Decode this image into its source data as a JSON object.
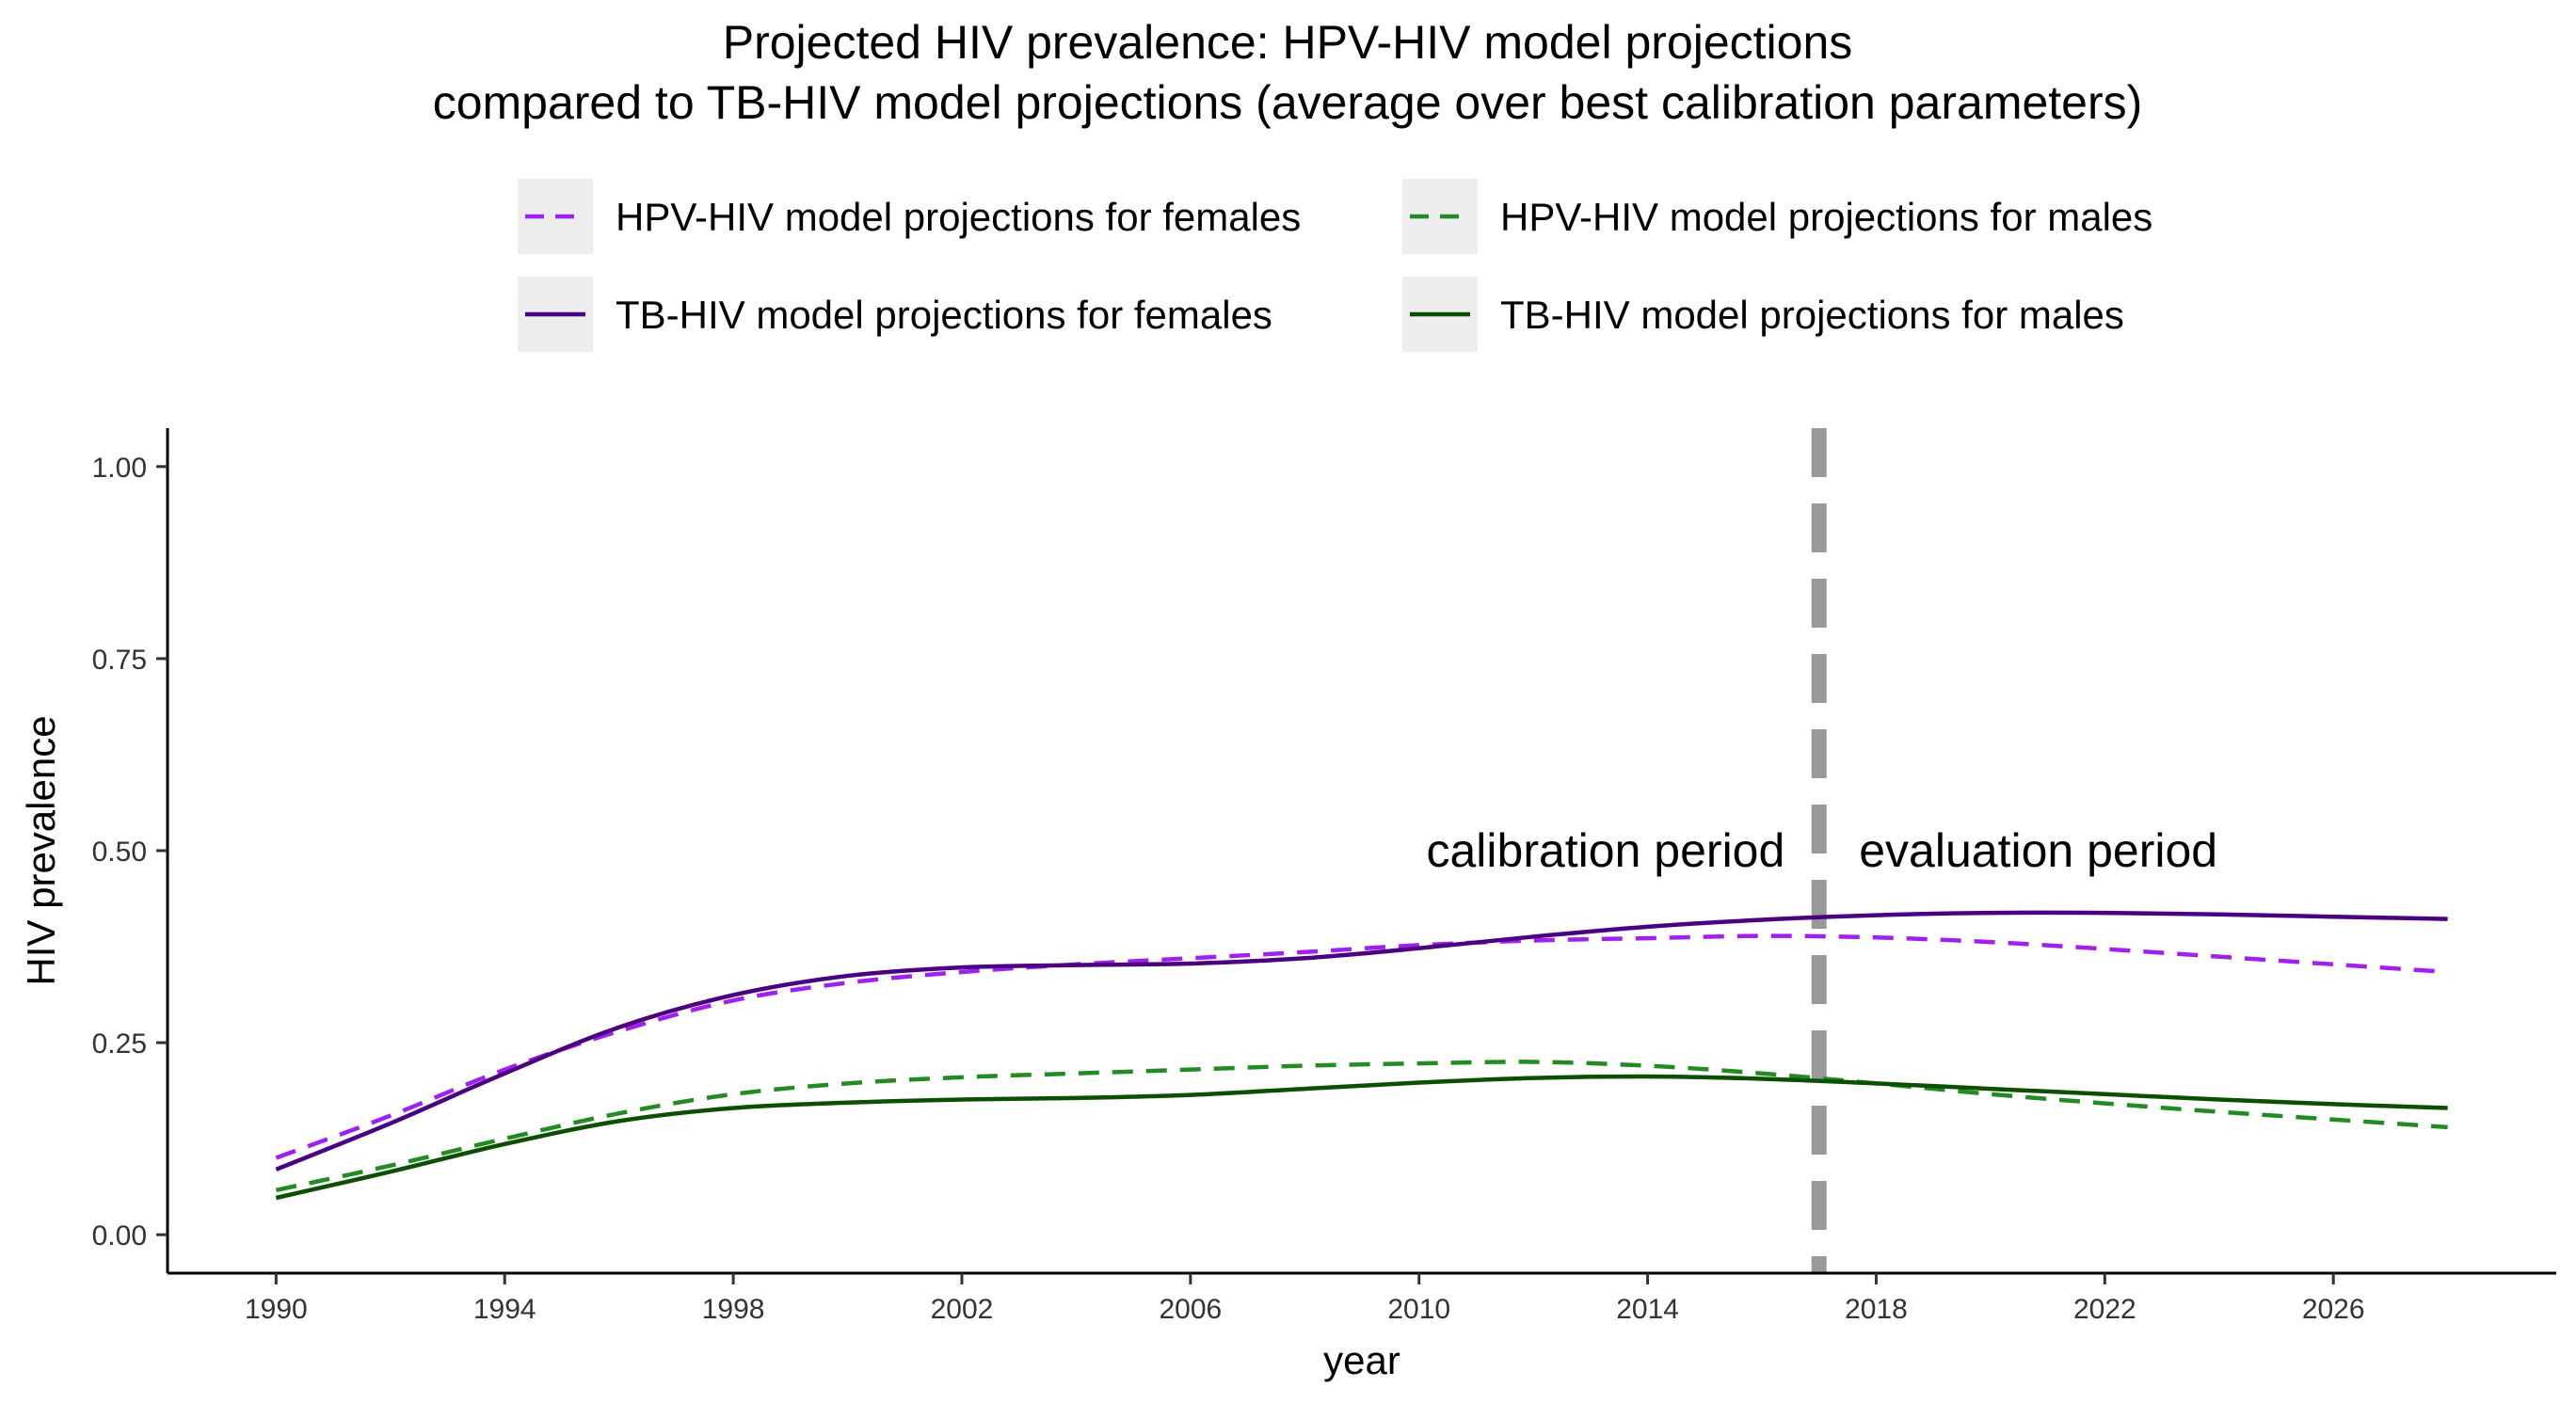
{
  "chart_data": {
    "type": "line",
    "title": "Projected HIV prevalence: HPV-HIV model projections",
    "subtitle": "compared to TB-HIV model projections (average over best calibration parameters)",
    "xlabel": "year",
    "ylabel": "HIV prevalence",
    "xlim": [
      1988.1,
      2029.9
    ],
    "ylim": [
      -0.05,
      1.05
    ],
    "x_ticks": [
      1990,
      1994,
      1998,
      2002,
      2006,
      2010,
      2014,
      2018,
      2022,
      2026
    ],
    "x_tick_labels": [
      "1990",
      "1994",
      "1998",
      "2002",
      "2006",
      "2010",
      "2014",
      "2018",
      "2022",
      "2026"
    ],
    "y_ticks": [
      0,
      0.25,
      0.5,
      0.75,
      1.0
    ],
    "y_tick_labels": [
      "0.00",
      "0.25",
      "0.50",
      "0.75",
      "1.00"
    ],
    "grid": false,
    "legend_position": "top",
    "x": [
      1990,
      1992,
      1994,
      1996,
      1998,
      2000,
      2002,
      2004,
      2006,
      2008,
      2010,
      2012,
      2014,
      2016,
      2018,
      2020,
      2022,
      2024,
      2026,
      2028
    ],
    "series": [
      {
        "name": "HPV-HIV model projections for females",
        "style": "dashed",
        "color": "#A020F0",
        "values": [
          0.1,
          0.155,
          0.215,
          0.265,
          0.305,
          0.328,
          0.342,
          0.352,
          0.36,
          0.368,
          0.377,
          0.383,
          0.386,
          0.389,
          0.387,
          0.381,
          0.372,
          0.362,
          0.352,
          0.342
        ]
      },
      {
        "name": "HPV-HIV model projections for males",
        "style": "dashed",
        "color": "#228B22",
        "values": [
          0.058,
          0.09,
          0.125,
          0.158,
          0.183,
          0.197,
          0.205,
          0.21,
          0.215,
          0.22,
          0.223,
          0.225,
          0.22,
          0.21,
          0.197,
          0.183,
          0.171,
          0.16,
          0.15,
          0.14
        ]
      },
      {
        "name": "TB-HIV model projections for females",
        "style": "solid",
        "color": "#4B0082",
        "values": [
          0.085,
          0.145,
          0.21,
          0.27,
          0.312,
          0.337,
          0.348,
          0.351,
          0.353,
          0.36,
          0.373,
          0.388,
          0.401,
          0.41,
          0.416,
          0.419,
          0.419,
          0.417,
          0.414,
          0.411
        ]
      },
      {
        "name": "TB-HIV model projections for males",
        "style": "solid",
        "color": "#0B5000",
        "values": [
          0.048,
          0.082,
          0.118,
          0.148,
          0.165,
          0.172,
          0.176,
          0.178,
          0.182,
          0.19,
          0.198,
          0.204,
          0.206,
          0.203,
          0.197,
          0.19,
          0.183,
          0.176,
          0.17,
          0.165
        ]
      }
    ],
    "vline": {
      "x": 2017,
      "style": "dashed",
      "color": "#999999"
    },
    "annotations": [
      {
        "text": "calibration period",
        "x": 2016.4,
        "y": 0.5,
        "anchor": "end"
      },
      {
        "text": "evaluation period",
        "x": 2017.7,
        "y": 0.5,
        "anchor": "start"
      }
    ]
  }
}
